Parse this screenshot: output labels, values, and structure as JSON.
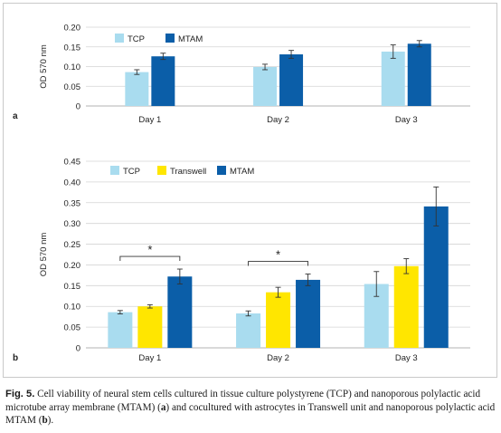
{
  "chart_data": [
    {
      "type": "bar",
      "panel_label": "a",
      "ylabel": "OD 570 nm",
      "categories": [
        "Day 1",
        "Day 2",
        "Day 3"
      ],
      "ylim": [
        0,
        0.2
      ],
      "yticks": [
        "0",
        "0.05",
        "0.10",
        "0.15",
        "0.20"
      ],
      "legend_position": "top-left",
      "grid": true,
      "series": [
        {
          "name": "TCP",
          "color": "#a9dcef",
          "values": [
            0.086,
            0.099,
            0.138
          ],
          "errors": [
            0.006,
            0.007,
            0.017
          ]
        },
        {
          "name": "MTAM",
          "color": "#0b5ea8",
          "values": [
            0.126,
            0.131,
            0.158
          ],
          "errors": [
            0.008,
            0.01,
            0.008
          ]
        }
      ]
    },
    {
      "type": "bar",
      "panel_label": "b",
      "ylabel": "OD 570 nm",
      "categories": [
        "Day 1",
        "Day 2",
        "Day 3"
      ],
      "ylim": [
        0,
        0.45
      ],
      "yticks": [
        "0",
        "0.05",
        "0.10",
        "0.15",
        "0.20",
        "0.25",
        "0.30",
        "0.35",
        "0.40",
        "0.45"
      ],
      "legend_position": "top-left",
      "grid": true,
      "significance": [
        {
          "category": "Day 1",
          "marker": "*"
        },
        {
          "category": "Day 2",
          "marker": "*"
        }
      ],
      "series": [
        {
          "name": "TCP",
          "color": "#a9dcef",
          "values": [
            0.086,
            0.083,
            0.154
          ],
          "errors": [
            0.004,
            0.006,
            0.03
          ]
        },
        {
          "name": "Transwell",
          "color": "#ffe600",
          "values": [
            0.1,
            0.134,
            0.197
          ],
          "errors": [
            0.004,
            0.012,
            0.018
          ]
        },
        {
          "name": "MTAM",
          "color": "#0b5ea8",
          "values": [
            0.172,
            0.164,
            0.341
          ],
          "errors": [
            0.018,
            0.014,
            0.047
          ]
        }
      ]
    }
  ],
  "caption": {
    "label": "Fig. 5.",
    "parts": [
      {
        "text": " Cell viability of neural stem cells cultured in tissue culture polystyrene (TCP) and nanoporous polylactic acid microtube array membrane (MTAM) (",
        "bold": false
      },
      {
        "text": "a",
        "bold": true
      },
      {
        "text": ") and cocultured with astrocytes in Transwell unit and nanoporous polylactic acid MTAM (",
        "bold": false
      },
      {
        "text": "b",
        "bold": true
      },
      {
        "text": ").",
        "bold": false
      }
    ]
  }
}
